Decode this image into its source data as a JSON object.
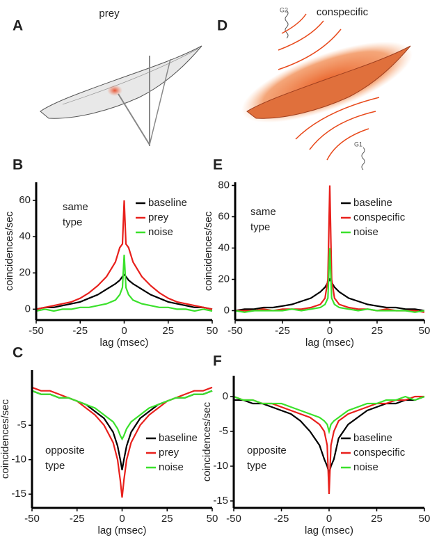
{
  "panels": {
    "a": "A",
    "b": "B",
    "c": "C",
    "d": "D",
    "e": "E",
    "f": "F"
  },
  "illustrations": {
    "left_title": "prey",
    "right_title": "conspecific",
    "g2": "G2",
    "g1": "G1"
  },
  "chart_data": [
    {
      "type": "line",
      "annotation": [
        "same",
        "type"
      ],
      "xlabel": "lag (msec)",
      "ylabel": "coincidences/sec",
      "x": [
        -50,
        -45,
        -40,
        -35,
        -30,
        -25,
        -20,
        -15,
        -10,
        -5,
        -2.5,
        -1,
        0,
        1,
        2.5,
        5,
        10,
        15,
        20,
        25,
        30,
        35,
        40,
        45,
        50
      ],
      "xlim": [
        -50,
        50
      ],
      "xticks": [
        -50,
        -25,
        0,
        25,
        50
      ],
      "ylim": [
        -6,
        70
      ],
      "yticks": [
        0,
        20,
        40,
        60
      ],
      "series": [
        {
          "name": "baseline",
          "color": "#000000",
          "values": [
            0,
            1,
            1,
            2,
            3,
            4,
            6,
            8,
            11,
            14,
            16,
            18,
            19,
            18,
            16,
            14,
            11,
            8,
            6,
            4,
            3,
            2,
            1,
            1,
            0
          ]
        },
        {
          "name": "prey",
          "color": "#e8201c",
          "values": [
            0,
            1,
            2,
            3,
            4,
            6,
            9,
            13,
            18,
            26,
            34,
            36,
            60,
            36,
            34,
            26,
            18,
            13,
            9,
            6,
            4,
            3,
            2,
            1,
            0
          ]
        },
        {
          "name": "noise",
          "color": "#3be12c",
          "values": [
            -1,
            0,
            -1,
            0,
            0,
            1,
            1,
            2,
            3,
            5,
            8,
            12,
            30,
            12,
            8,
            5,
            3,
            2,
            1,
            1,
            0,
            0,
            -1,
            0,
            -1
          ]
        }
      ]
    },
    {
      "type": "line",
      "annotation": [
        "same",
        "type"
      ],
      "xlabel": "lag (msec)",
      "ylabel": "coincidences/sec",
      "x": [
        -50,
        -45,
        -40,
        -35,
        -30,
        -25,
        -20,
        -15,
        -10,
        -5,
        -2.5,
        -1,
        0,
        1,
        2.5,
        5,
        10,
        15,
        20,
        25,
        30,
        35,
        40,
        45,
        50
      ],
      "xlim": [
        -50,
        50
      ],
      "xticks": [
        -50,
        -25,
        0,
        25,
        50
      ],
      "ylim": [
        -6,
        82
      ],
      "yticks": [
        0,
        20,
        40,
        60,
        80
      ],
      "series": [
        {
          "name": "baseline",
          "color": "#000000",
          "values": [
            0,
            1,
            1,
            2,
            2,
            3,
            4,
            6,
            8,
            12,
            15,
            18,
            20,
            18,
            15,
            12,
            8,
            6,
            4,
            3,
            2,
            2,
            1,
            1,
            0
          ]
        },
        {
          "name": "conspecific",
          "color": "#e8201c",
          "values": [
            0,
            0,
            0,
            1,
            0,
            1,
            1,
            1,
            2,
            4,
            8,
            20,
            80,
            20,
            8,
            4,
            2,
            1,
            1,
            0,
            1,
            0,
            0,
            0,
            -1
          ]
        },
        {
          "name": "noise",
          "color": "#3be12c",
          "values": [
            0,
            -1,
            0,
            0,
            0,
            0,
            1,
            0,
            1,
            2,
            4,
            8,
            40,
            8,
            4,
            2,
            1,
            0,
            1,
            0,
            0,
            0,
            0,
            -1,
            0
          ]
        }
      ]
    },
    {
      "type": "line",
      "annotation": [
        "opposite",
        "type"
      ],
      "xlabel": "lag (msec)",
      "ylabel": "coincidences/sec",
      "x": [
        -50,
        -45,
        -40,
        -35,
        -30,
        -25,
        -20,
        -15,
        -10,
        -5,
        -2.5,
        -1,
        0,
        1,
        2.5,
        5,
        10,
        15,
        20,
        25,
        30,
        35,
        40,
        45,
        50
      ],
      "xlim": [
        -50,
        50
      ],
      "xticks": [
        -50,
        -25,
        0,
        25,
        50
      ],
      "ylim": [
        -17,
        3
      ],
      "yticks": [
        -15,
        -10,
        -5
      ],
      "series": [
        {
          "name": "baseline",
          "color": "#000000",
          "values": [
            0,
            -0.5,
            -0.5,
            -1,
            -1,
            -1.5,
            -2,
            -3,
            -4,
            -6,
            -8,
            -10,
            -11.5,
            -10,
            -8,
            -6,
            -4,
            -3,
            -2,
            -1.5,
            -1,
            -1,
            -0.5,
            -0.5,
            0
          ]
        },
        {
          "name": "prey",
          "color": "#e8201c",
          "values": [
            0.5,
            0,
            0,
            -0.5,
            -1,
            -1.5,
            -2.5,
            -3.5,
            -5,
            -7.5,
            -10,
            -13,
            -15.5,
            -13,
            -10,
            -7.5,
            -5,
            -3.5,
            -2.5,
            -1.5,
            -1,
            -0.5,
            0,
            0,
            0.5
          ]
        },
        {
          "name": "noise",
          "color": "#3be12c",
          "values": [
            0,
            -0.5,
            -0.5,
            -1,
            -1,
            -1.5,
            -2,
            -2.5,
            -3.5,
            -4.5,
            -5.5,
            -6.5,
            -7,
            -6.5,
            -5.5,
            -4.5,
            -3.5,
            -2.5,
            -2,
            -1.5,
            -1,
            -1,
            -0.5,
            -0.5,
            0
          ]
        }
      ]
    },
    {
      "type": "line",
      "annotation": [
        "opposite",
        "type"
      ],
      "xlabel": "lag (msec)",
      "ylabel": "coincidences/sec",
      "x": [
        -50,
        -45,
        -40,
        -35,
        -30,
        -25,
        -20,
        -15,
        -10,
        -5,
        -2.5,
        -1,
        0,
        1,
        2.5,
        5,
        10,
        15,
        20,
        25,
        30,
        35,
        40,
        45,
        50
      ],
      "xlim": [
        -50,
        50
      ],
      "xticks": [
        -50,
        -25,
        0,
        25,
        50
      ],
      "ylim": [
        -16,
        3
      ],
      "yticks": [
        -15,
        -10,
        -5,
        0
      ],
      "series": [
        {
          "name": "baseline",
          "color": "#000000",
          "values": [
            -0.5,
            -0.5,
            -1,
            -1,
            -1.5,
            -2,
            -2.5,
            -3.5,
            -5,
            -7,
            -9,
            -10,
            -11,
            -10,
            -9,
            -6,
            -4,
            -3,
            -2,
            -1.5,
            -1,
            -1,
            -0.5,
            -0.5,
            0
          ]
        },
        {
          "name": "conspecific",
          "color": "#e8201c",
          "values": [
            0,
            -0.5,
            -0.5,
            -1,
            -1,
            -1.5,
            -2,
            -2.5,
            -3,
            -4,
            -5,
            -7,
            -14,
            -7,
            -5,
            -3.5,
            -2.5,
            -2,
            -1.5,
            -1,
            -1,
            -0.5,
            -0.5,
            0,
            0
          ]
        },
        {
          "name": "noise",
          "color": "#3be12c",
          "values": [
            0,
            -0.5,
            -0.5,
            -1,
            -1,
            -1,
            -1.5,
            -2,
            -2.5,
            -3,
            -3.5,
            -4,
            -5,
            -4,
            -3.5,
            -3,
            -2,
            -1.5,
            -1,
            -1,
            -0.5,
            -0.5,
            0,
            -0.5,
            0
          ]
        }
      ]
    }
  ]
}
